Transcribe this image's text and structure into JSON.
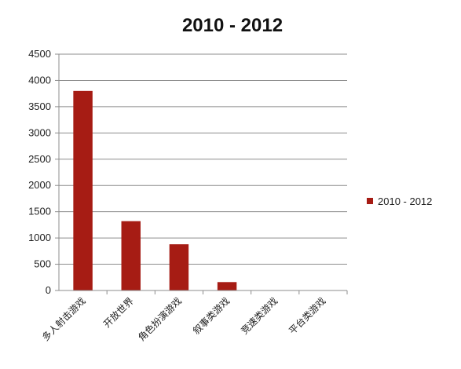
{
  "chart_data": {
    "type": "bar",
    "title": "2010 - 2012",
    "categories": [
      "多人射击游戏",
      "开放世界",
      "角色扮演游戏",
      "叙事类游戏",
      "竞速类游戏",
      "平台类游戏"
    ],
    "series": [
      {
        "name": "2010 - 2012",
        "values": [
          3800,
          1320,
          880,
          160,
          0,
          0
        ],
        "color": "#a61c14"
      }
    ],
    "ylim": [
      0,
      4500
    ],
    "yticks": [
      "0",
      "500",
      "1000",
      "1500",
      "2000",
      "2500",
      "3000",
      "3500",
      "4000",
      "4500"
    ],
    "grid": true,
    "legend_position": "right"
  }
}
